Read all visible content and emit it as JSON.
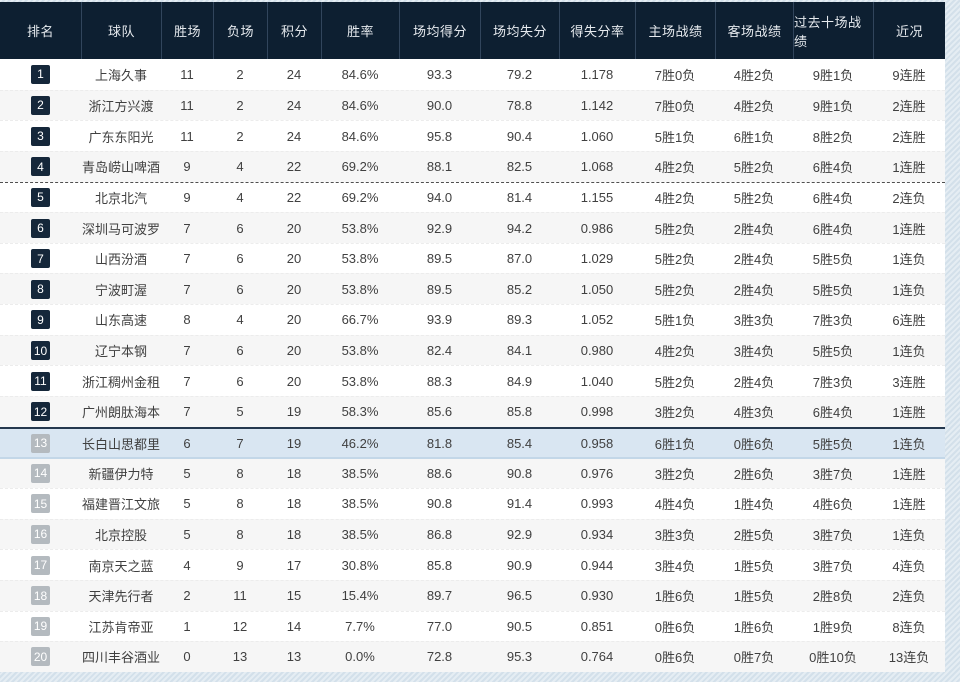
{
  "colors": {
    "header_bg": "#0d1f31",
    "badge_top_zone": "#15273a",
    "badge_bottom_zone": "#b4babf",
    "highlight_row_bg": "#d9e6f2",
    "page_bg": "#d7e3ed"
  },
  "table": {
    "columns": [
      {
        "key": "rank",
        "label": "排名"
      },
      {
        "key": "team",
        "label": "球队"
      },
      {
        "key": "wins",
        "label": "胜场"
      },
      {
        "key": "losses",
        "label": "负场"
      },
      {
        "key": "points",
        "label": "积分"
      },
      {
        "key": "win_rate",
        "label": "胜率"
      },
      {
        "key": "avg_for",
        "label": "场均得分"
      },
      {
        "key": "avg_against",
        "label": "场均失分"
      },
      {
        "key": "ratio",
        "label": "得失分率"
      },
      {
        "key": "home",
        "label": "主场战绩"
      },
      {
        "key": "away",
        "label": "客场战绩"
      },
      {
        "key": "last10",
        "label": "过去十场战绩"
      },
      {
        "key": "streak",
        "label": "近况"
      }
    ],
    "rows": [
      {
        "rank": "1",
        "team": "上海久事",
        "wins": "11",
        "losses": "2",
        "points": "24",
        "win_rate": "84.6%",
        "avg_for": "93.3",
        "avg_against": "79.2",
        "ratio": "1.178",
        "home": "7胜0负",
        "away": "4胜2负",
        "last10": "9胜1负",
        "streak": "9连胜",
        "badge": "navy",
        "highlighted": false,
        "divider_above": false
      },
      {
        "rank": "2",
        "team": "浙江方兴渡",
        "wins": "11",
        "losses": "2",
        "points": "24",
        "win_rate": "84.6%",
        "avg_for": "90.0",
        "avg_against": "78.8",
        "ratio": "1.142",
        "home": "7胜0负",
        "away": "4胜2负",
        "last10": "9胜1负",
        "streak": "2连胜",
        "badge": "navy",
        "highlighted": false,
        "divider_above": false
      },
      {
        "rank": "3",
        "team": "广东东阳光",
        "wins": "11",
        "losses": "2",
        "points": "24",
        "win_rate": "84.6%",
        "avg_for": "95.8",
        "avg_against": "90.4",
        "ratio": "1.060",
        "home": "5胜1负",
        "away": "6胜1负",
        "last10": "8胜2负",
        "streak": "2连胜",
        "badge": "navy",
        "highlighted": false,
        "divider_above": false
      },
      {
        "rank": "4",
        "team": "青岛崂山啤酒",
        "wins": "9",
        "losses": "4",
        "points": "22",
        "win_rate": "69.2%",
        "avg_for": "88.1",
        "avg_against": "82.5",
        "ratio": "1.068",
        "home": "4胜2负",
        "away": "5胜2负",
        "last10": "6胜4负",
        "streak": "1连胜",
        "badge": "navy",
        "highlighted": false,
        "divider_above": false
      },
      {
        "rank": "5",
        "team": "北京北汽",
        "wins": "9",
        "losses": "4",
        "points": "22",
        "win_rate": "69.2%",
        "avg_for": "94.0",
        "avg_against": "81.4",
        "ratio": "1.155",
        "home": "4胜2负",
        "away": "5胜2负",
        "last10": "6胜4负",
        "streak": "2连负",
        "badge": "navy",
        "highlighted": false,
        "divider_above": true
      },
      {
        "rank": "6",
        "team": "深圳马可波罗",
        "wins": "7",
        "losses": "6",
        "points": "20",
        "win_rate": "53.8%",
        "avg_for": "92.9",
        "avg_against": "94.2",
        "ratio": "0.986",
        "home": "5胜2负",
        "away": "2胜4负",
        "last10": "6胜4负",
        "streak": "1连胜",
        "badge": "navy",
        "highlighted": false,
        "divider_above": false
      },
      {
        "rank": "7",
        "team": "山西汾酒",
        "wins": "7",
        "losses": "6",
        "points": "20",
        "win_rate": "53.8%",
        "avg_for": "89.5",
        "avg_against": "87.0",
        "ratio": "1.029",
        "home": "5胜2负",
        "away": "2胜4负",
        "last10": "5胜5负",
        "streak": "1连负",
        "badge": "navy",
        "highlighted": false,
        "divider_above": false
      },
      {
        "rank": "8",
        "team": "宁波町渥",
        "wins": "7",
        "losses": "6",
        "points": "20",
        "win_rate": "53.8%",
        "avg_for": "89.5",
        "avg_against": "85.2",
        "ratio": "1.050",
        "home": "5胜2负",
        "away": "2胜4负",
        "last10": "5胜5负",
        "streak": "1连负",
        "badge": "navy",
        "highlighted": false,
        "divider_above": false
      },
      {
        "rank": "9",
        "team": "山东高速",
        "wins": "8",
        "losses": "4",
        "points": "20",
        "win_rate": "66.7%",
        "avg_for": "93.9",
        "avg_against": "89.3",
        "ratio": "1.052",
        "home": "5胜1负",
        "away": "3胜3负",
        "last10": "7胜3负",
        "streak": "6连胜",
        "badge": "navy",
        "highlighted": false,
        "divider_above": false
      },
      {
        "rank": "10",
        "team": "辽宁本钢",
        "wins": "7",
        "losses": "6",
        "points": "20",
        "win_rate": "53.8%",
        "avg_for": "82.4",
        "avg_against": "84.1",
        "ratio": "0.980",
        "home": "4胜2负",
        "away": "3胜4负",
        "last10": "5胜5负",
        "streak": "1连负",
        "badge": "navy",
        "highlighted": false,
        "divider_above": false
      },
      {
        "rank": "11",
        "team": "浙江稠州金租",
        "wins": "7",
        "losses": "6",
        "points": "20",
        "win_rate": "53.8%",
        "avg_for": "88.3",
        "avg_against": "84.9",
        "ratio": "1.040",
        "home": "5胜2负",
        "away": "2胜4负",
        "last10": "7胜3负",
        "streak": "3连胜",
        "badge": "navy",
        "highlighted": false,
        "divider_above": false
      },
      {
        "rank": "12",
        "team": "广州朗肽海本",
        "wins": "7",
        "losses": "5",
        "points": "19",
        "win_rate": "58.3%",
        "avg_for": "85.6",
        "avg_against": "85.8",
        "ratio": "0.998",
        "home": "3胜2负",
        "away": "4胜3负",
        "last10": "6胜4负",
        "streak": "1连胜",
        "badge": "navy",
        "highlighted": false,
        "divider_above": false
      },
      {
        "rank": "13",
        "team": "长白山思都里",
        "wins": "6",
        "losses": "7",
        "points": "19",
        "win_rate": "46.2%",
        "avg_for": "81.8",
        "avg_against": "85.4",
        "ratio": "0.958",
        "home": "6胜1负",
        "away": "0胜6负",
        "last10": "5胜5负",
        "streak": "1连负",
        "badge": "gray",
        "highlighted": true,
        "divider_above": false
      },
      {
        "rank": "14",
        "team": "新疆伊力特",
        "wins": "5",
        "losses": "8",
        "points": "18",
        "win_rate": "38.5%",
        "avg_for": "88.6",
        "avg_against": "90.8",
        "ratio": "0.976",
        "home": "3胜2负",
        "away": "2胜6负",
        "last10": "3胜7负",
        "streak": "1连胜",
        "badge": "gray",
        "highlighted": false,
        "divider_above": false
      },
      {
        "rank": "15",
        "team": "福建晋江文旅",
        "wins": "5",
        "losses": "8",
        "points": "18",
        "win_rate": "38.5%",
        "avg_for": "90.8",
        "avg_against": "91.4",
        "ratio": "0.993",
        "home": "4胜4负",
        "away": "1胜4负",
        "last10": "4胜6负",
        "streak": "1连胜",
        "badge": "gray",
        "highlighted": false,
        "divider_above": false
      },
      {
        "rank": "16",
        "team": "北京控股",
        "wins": "5",
        "losses": "8",
        "points": "18",
        "win_rate": "38.5%",
        "avg_for": "86.8",
        "avg_against": "92.9",
        "ratio": "0.934",
        "home": "3胜3负",
        "away": "2胜5负",
        "last10": "3胜7负",
        "streak": "1连负",
        "badge": "gray",
        "highlighted": false,
        "divider_above": false
      },
      {
        "rank": "17",
        "team": "南京天之蓝",
        "wins": "4",
        "losses": "9",
        "points": "17",
        "win_rate": "30.8%",
        "avg_for": "85.8",
        "avg_against": "90.9",
        "ratio": "0.944",
        "home": "3胜4负",
        "away": "1胜5负",
        "last10": "3胜7负",
        "streak": "4连负",
        "badge": "gray",
        "highlighted": false,
        "divider_above": false
      },
      {
        "rank": "18",
        "team": "天津先行者",
        "wins": "2",
        "losses": "11",
        "points": "15",
        "win_rate": "15.4%",
        "avg_for": "89.7",
        "avg_against": "96.5",
        "ratio": "0.930",
        "home": "1胜6负",
        "away": "1胜5负",
        "last10": "2胜8负",
        "streak": "2连负",
        "badge": "gray",
        "highlighted": false,
        "divider_above": false
      },
      {
        "rank": "19",
        "team": "江苏肯帝亚",
        "wins": "1",
        "losses": "12",
        "points": "14",
        "win_rate": "7.7%",
        "avg_for": "77.0",
        "avg_against": "90.5",
        "ratio": "0.851",
        "home": "0胜6负",
        "away": "1胜6负",
        "last10": "1胜9负",
        "streak": "8连负",
        "badge": "gray",
        "highlighted": false,
        "divider_above": false
      },
      {
        "rank": "20",
        "team": "四川丰谷酒业",
        "wins": "0",
        "losses": "13",
        "points": "13",
        "win_rate": "0.0%",
        "avg_for": "72.8",
        "avg_against": "95.3",
        "ratio": "0.764",
        "home": "0胜6负",
        "away": "0胜7负",
        "last10": "0胜10负",
        "streak": "13连负",
        "badge": "gray",
        "highlighted": false,
        "divider_above": false
      }
    ]
  }
}
